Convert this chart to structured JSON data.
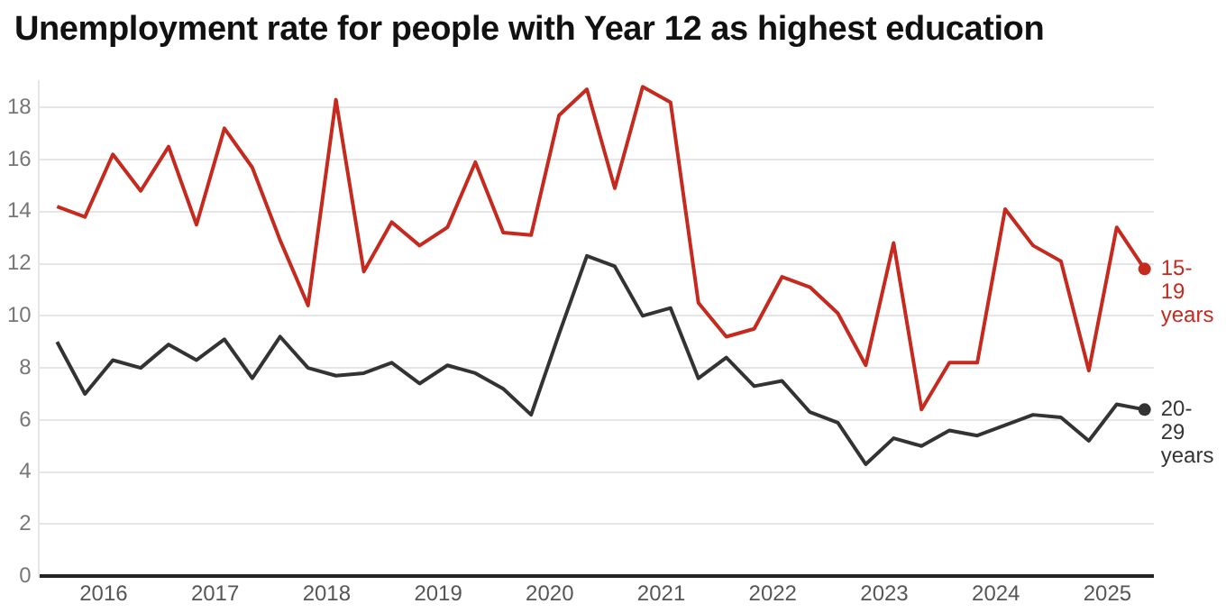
{
  "chart_data": {
    "type": "line",
    "title": "Unemployment rate for people with Year 12 as highest education",
    "x": [
      "2015-08",
      "2015-11",
      "2016-02",
      "2016-05",
      "2016-08",
      "2016-11",
      "2017-02",
      "2017-05",
      "2017-08",
      "2017-11",
      "2018-02",
      "2018-05",
      "2018-08",
      "2018-11",
      "2019-02",
      "2019-05",
      "2019-08",
      "2019-11",
      "2020-02",
      "2020-05",
      "2020-08",
      "2020-11",
      "2021-02",
      "2021-05",
      "2021-08",
      "2021-11",
      "2022-02",
      "2022-05",
      "2022-08",
      "2022-11",
      "2023-02",
      "2023-05",
      "2023-08",
      "2023-11",
      "2024-02",
      "2024-05",
      "2024-08",
      "2024-11",
      "2025-02",
      "2025-05"
    ],
    "series": [
      {
        "name": "15-19 years",
        "color": "#c62a1f",
        "values": [
          14.2,
          13.8,
          16.2,
          14.8,
          16.5,
          13.5,
          17.2,
          15.7,
          12.9,
          10.4,
          18.3,
          11.7,
          13.6,
          12.7,
          13.4,
          15.9,
          13.2,
          13.1,
          17.7,
          18.7,
          14.9,
          18.8,
          18.2,
          10.5,
          9.2,
          9.5,
          11.5,
          11.1,
          10.1,
          8.1,
          12.8,
          6.4,
          8.2,
          8.2,
          14.1,
          12.7,
          12.1,
          7.9,
          13.4,
          11.8
        ]
      },
      {
        "name": "20-29 years",
        "color": "#333333",
        "values": [
          9.0,
          7.0,
          8.3,
          8.0,
          8.9,
          8.3,
          9.1,
          7.6,
          9.2,
          8.0,
          7.7,
          7.8,
          8.2,
          7.4,
          8.1,
          7.8,
          7.2,
          6.2,
          9.3,
          12.3,
          11.9,
          10.0,
          10.3,
          7.6,
          8.4,
          7.3,
          7.5,
          6.3,
          5.9,
          4.3,
          5.3,
          5.0,
          5.6,
          5.4,
          5.8,
          6.2,
          6.1,
          5.2,
          6.6,
          6.4
        ]
      }
    ],
    "xlim": [
      "2015-06",
      "2025-06"
    ],
    "xticks": [
      "2016",
      "2017",
      "2018",
      "2019",
      "2020",
      "2021",
      "2022",
      "2023",
      "2024",
      "2025"
    ],
    "ylim": [
      0,
      19
    ],
    "yticks": [
      0,
      2,
      4,
      6,
      8,
      10,
      12,
      14,
      16,
      18
    ],
    "grid": "y",
    "legend": false,
    "marker": "none",
    "line_style": "solid"
  }
}
